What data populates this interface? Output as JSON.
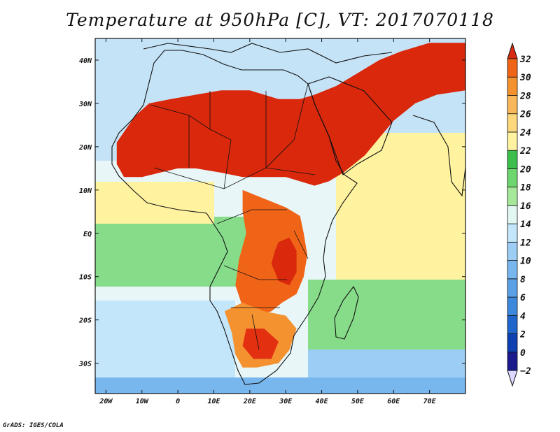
{
  "title": "Temperature at 950hPa [C], VT: 2017070118",
  "credit": "GrADS: IGES/COLA",
  "map": {
    "projection": "lat-lon",
    "lon_range": [
      -23,
      80
    ],
    "lat_range": [
      -37,
      45
    ],
    "lon_ticks": [
      {
        "value": -20,
        "label": "20W"
      },
      {
        "value": -10,
        "label": "10W"
      },
      {
        "value": 0,
        "label": "0"
      },
      {
        "value": 10,
        "label": "10E"
      },
      {
        "value": 20,
        "label": "20E"
      },
      {
        "value": 30,
        "label": "30E"
      },
      {
        "value": 40,
        "label": "40E"
      },
      {
        "value": 50,
        "label": "50E"
      },
      {
        "value": 60,
        "label": "60E"
      },
      {
        "value": 70,
        "label": "70E"
      }
    ],
    "lat_ticks": [
      {
        "value": 40,
        "label": "40N"
      },
      {
        "value": 30,
        "label": "30N"
      },
      {
        "value": 20,
        "label": "20N"
      },
      {
        "value": 10,
        "label": "10N"
      },
      {
        "value": 0,
        "label": "EQ"
      },
      {
        "value": -10,
        "label": "10S"
      },
      {
        "value": -20,
        "label": "20S"
      },
      {
        "value": -30,
        "label": "30S"
      }
    ]
  },
  "colorbar": {
    "levels": [
      -2,
      0,
      2,
      4,
      6,
      8,
      10,
      12,
      14,
      16,
      18,
      20,
      22,
      24,
      26,
      28,
      30,
      32
    ],
    "colors": [
      "#1a1a8c",
      "#0d40b0",
      "#1e66cc",
      "#3c88dd",
      "#5aa0e6",
      "#78b6ee",
      "#9ccdf4",
      "#c4e6fa",
      "#e2f6f2",
      "#a6e89a",
      "#6ed66e",
      "#3cbe4c",
      "#fff3a0",
      "#fcd87a",
      "#f8b85a",
      "#f49230",
      "#f06418",
      "#e23010",
      "#c81e0a"
    ],
    "under_color": "#dcd8ff",
    "over_color": "#d82a10"
  },
  "field": {
    "regions": [
      {
        "name": "sahara-core",
        "color": "#d9280c",
        "points": [
          [
            -17,
            21
          ],
          [
            -12,
            27
          ],
          [
            -8,
            30
          ],
          [
            -2,
            31
          ],
          [
            5,
            32
          ],
          [
            12,
            33
          ],
          [
            20,
            33
          ],
          [
            28,
            31
          ],
          [
            34,
            31
          ],
          [
            38,
            32
          ],
          [
            44,
            34
          ],
          [
            50,
            37
          ],
          [
            56,
            40
          ],
          [
            62,
            42
          ],
          [
            70,
            44
          ],
          [
            80,
            44
          ],
          [
            80,
            33
          ],
          [
            72,
            32
          ],
          [
            66,
            30
          ],
          [
            60,
            26
          ],
          [
            56,
            22
          ],
          [
            52,
            18
          ],
          [
            46,
            14
          ],
          [
            42,
            12
          ],
          [
            38,
            11
          ],
          [
            34,
            12
          ],
          [
            30,
            13
          ],
          [
            25,
            13
          ],
          [
            18,
            13
          ],
          [
            12,
            14
          ],
          [
            5,
            15
          ],
          [
            0,
            15
          ],
          [
            -5,
            14
          ],
          [
            -10,
            13
          ],
          [
            -15,
            13
          ],
          [
            -17,
            16
          ]
        ]
      },
      {
        "name": "central-africa-hot",
        "color": "#f06418",
        "points": [
          [
            18,
            10
          ],
          [
            24,
            8
          ],
          [
            30,
            6
          ],
          [
            34,
            4
          ],
          [
            35,
            0
          ],
          [
            36,
            -5
          ],
          [
            35,
            -10
          ],
          [
            33,
            -14
          ],
          [
            29,
            -16
          ],
          [
            26,
            -18
          ],
          [
            22,
            -19
          ],
          [
            18,
            -17
          ],
          [
            16,
            -12
          ],
          [
            17,
            -6
          ],
          [
            19,
            0
          ],
          [
            18,
            5
          ]
        ]
      },
      {
        "name": "east-africa-highland",
        "color": "#d9280c",
        "points": [
          [
            28,
            -2
          ],
          [
            31,
            -1
          ],
          [
            33,
            -4
          ],
          [
            33,
            -9
          ],
          [
            31,
            -12
          ],
          [
            28,
            -11
          ],
          [
            26,
            -7
          ],
          [
            27,
            -4
          ]
        ]
      },
      {
        "name": "southern-africa",
        "color": "#f49230",
        "points": [
          [
            13,
            -18
          ],
          [
            18,
            -16
          ],
          [
            24,
            -18
          ],
          [
            30,
            -19
          ],
          [
            33,
            -22
          ],
          [
            31,
            -27
          ],
          [
            28,
            -30
          ],
          [
            22,
            -31
          ],
          [
            18,
            -31
          ],
          [
            16,
            -28
          ],
          [
            15,
            -23
          ]
        ]
      },
      {
        "name": "kalahari-hot",
        "color": "#e23010",
        "points": [
          [
            19,
            -22
          ],
          [
            24,
            -22
          ],
          [
            28,
            -25
          ],
          [
            26,
            -29
          ],
          [
            21,
            -29
          ],
          [
            18,
            -26
          ]
        ]
      }
    ]
  }
}
